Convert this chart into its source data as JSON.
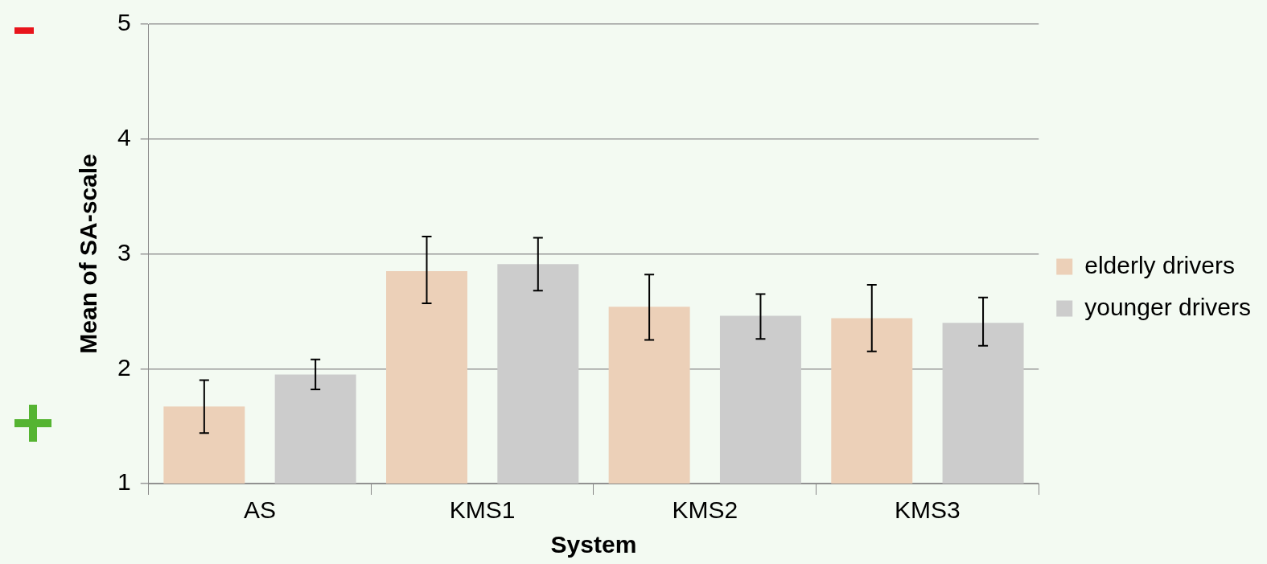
{
  "chart_data": {
    "type": "bar",
    "xlabel": "System",
    "ylabel": "Mean of SA-scale",
    "categories": [
      "AS",
      "KMS1",
      "KMS2",
      "KMS3"
    ],
    "series": [
      {
        "name": "elderly drivers",
        "color": "#ecd0b8",
        "values": [
          1.67,
          2.85,
          2.54,
          2.44
        ],
        "errors": [
          [
            1.44,
            1.9
          ],
          [
            2.57,
            3.15
          ],
          [
            2.25,
            2.82
          ],
          [
            2.15,
            2.73
          ]
        ]
      },
      {
        "name": "younger drivers",
        "color": "#cccccc",
        "values": [
          1.95,
          2.91,
          2.46,
          2.4
        ],
        "errors": [
          [
            1.82,
            2.08
          ],
          [
            2.68,
            3.14
          ],
          [
            2.26,
            2.65
          ],
          [
            2.2,
            2.62
          ]
        ]
      }
    ],
    "ylim": [
      1,
      5
    ],
    "yticks": [
      1,
      2,
      3,
      4,
      5
    ],
    "grid": "y",
    "legend": "right"
  }
}
